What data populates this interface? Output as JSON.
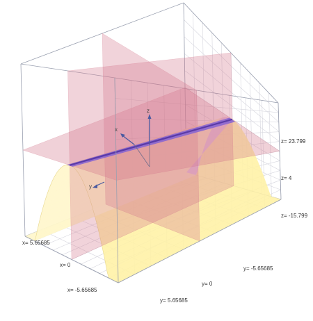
{
  "chart_data": {
    "type": "surface3d",
    "surface": {
      "function": "z = -x^2 + 4",
      "color_light": "#fff5b8",
      "color_dark": "#d9b8f5",
      "ridge_color": "#7a55c8"
    },
    "planes": [
      {
        "plane": "x = 0",
        "color": "#d47a8f"
      },
      {
        "plane": "y = 0",
        "color": "#d47a8f"
      },
      {
        "plane": "z = 4",
        "color": "#d47a8f"
      }
    ],
    "axes": {
      "x_label": "x",
      "y_label": "y",
      "z_label": "z"
    },
    "xlim": [
      -5.65685,
      5.65685
    ],
    "ylim": [
      -5.65685,
      5.65685
    ],
    "zlim": [
      -15.799,
      23.799
    ],
    "box_grid": true,
    "tick_labels": {
      "x_max": "x= 5.65685",
      "x_mid": "x= 0",
      "x_min": "x= -5.65685",
      "y_max": "y= 5.65685",
      "y_mid": "y= 0",
      "y_min": "y= -5.65685",
      "z_max": "z= 23.799",
      "z_mid": "z= 4",
      "z_min": "z= -15.799"
    }
  }
}
